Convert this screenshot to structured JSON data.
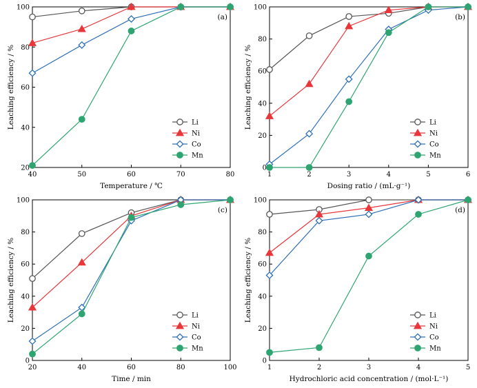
{
  "colors": {
    "Li": "#555555",
    "Ni": "#e8363a",
    "Co": "#2e6fb6",
    "Mn": "#2ea571"
  },
  "markers": {
    "Li": "open-circle",
    "Ni": "filled-triangle",
    "Co": "open-diamond",
    "Mn": "filled-circle"
  },
  "chart_data": [
    {
      "id": "a",
      "type": "line",
      "tag": "(a)",
      "xlabel": "Temperature / ℃",
      "ylabel": "Leaching efficiency / %",
      "xlim": [
        40,
        80
      ],
      "ylim": [
        20,
        100
      ],
      "xticks": [
        40,
        50,
        60,
        70,
        80
      ],
      "yticks": [
        20,
        40,
        60,
        80,
        100
      ],
      "grid": false,
      "legend_position": "bottom-right",
      "x": [
        40,
        50,
        60,
        70,
        80
      ],
      "series": [
        {
          "name": "Li",
          "values": [
            95,
            98,
            100,
            100,
            100
          ]
        },
        {
          "name": "Ni",
          "values": [
            82,
            89,
            100,
            100,
            100
          ]
        },
        {
          "name": "Co",
          "values": [
            67,
            81,
            94,
            100,
            100
          ]
        },
        {
          "name": "Mn",
          "values": [
            21,
            44,
            88,
            100,
            100
          ]
        }
      ]
    },
    {
      "id": "b",
      "type": "line",
      "tag": "(b)",
      "xlabel": "Dosing ratio / (mL·g⁻¹)",
      "ylabel": "Leaching efficiency / %",
      "xlim": [
        1,
        6
      ],
      "ylim": [
        0,
        100
      ],
      "xticks": [
        1,
        2,
        3,
        4,
        5,
        6
      ],
      "yticks": [
        0,
        20,
        40,
        60,
        80,
        100
      ],
      "grid": false,
      "legend_position": "bottom-right",
      "x": [
        1,
        2,
        3,
        4,
        5,
        6
      ],
      "series": [
        {
          "name": "Li",
          "values": [
            61,
            82,
            94,
            96,
            100,
            100
          ]
        },
        {
          "name": "Ni",
          "values": [
            32,
            52,
            88,
            98,
            100,
            100
          ]
        },
        {
          "name": "Co",
          "values": [
            2,
            21,
            55,
            86,
            98,
            100
          ]
        },
        {
          "name": "Mn",
          "values": [
            0,
            0,
            41,
            84,
            100,
            100
          ]
        }
      ]
    },
    {
      "id": "c",
      "type": "line",
      "tag": "(c)",
      "xlabel": "Time / min",
      "ylabel": "Leaching efficiency / %",
      "xlim": [
        20,
        100
      ],
      "ylim": [
        0,
        100
      ],
      "xticks": [
        20,
        40,
        60,
        80,
        100
      ],
      "yticks": [
        0,
        20,
        40,
        60,
        80,
        100
      ],
      "grid": false,
      "legend_position": "bottom-right",
      "x": [
        20,
        40,
        60,
        80,
        100
      ],
      "series": [
        {
          "name": "Li",
          "values": [
            51,
            79,
            92,
            100,
            100
          ]
        },
        {
          "name": "Ni",
          "values": [
            33,
            61,
            90,
            100,
            100
          ]
        },
        {
          "name": "Co",
          "values": [
            12,
            33,
            87,
            100,
            100
          ]
        },
        {
          "name": "Mn",
          "values": [
            4,
            29,
            89,
            97,
            100
          ]
        }
      ]
    },
    {
      "id": "d",
      "type": "line",
      "tag": "(d)",
      "xlabel": "Hydrochloric acid concentration / (mol·L⁻¹)",
      "ylabel": "Leaching efficiency / %",
      "xlim": [
        1,
        5
      ],
      "ylim": [
        0,
        100
      ],
      "xticks": [
        1,
        2,
        3,
        4,
        5
      ],
      "yticks": [
        0,
        20,
        40,
        60,
        80,
        100
      ],
      "grid": false,
      "legend_position": "bottom-right",
      "x": [
        1,
        2,
        3,
        4,
        5
      ],
      "series": [
        {
          "name": "Li",
          "values": [
            91,
            94,
            100,
            100,
            100
          ]
        },
        {
          "name": "Ni",
          "values": [
            67,
            91,
            95,
            100,
            100
          ]
        },
        {
          "name": "Co",
          "values": [
            53,
            87,
            91,
            100,
            100
          ]
        },
        {
          "name": "Mn",
          "values": [
            5,
            8,
            65,
            91,
            100
          ]
        }
      ]
    }
  ]
}
